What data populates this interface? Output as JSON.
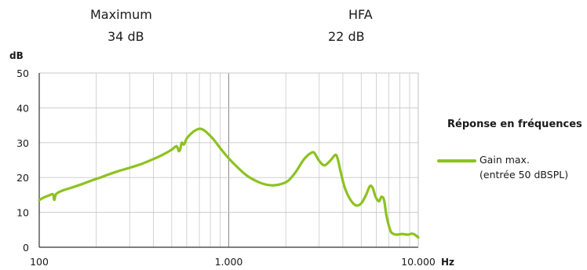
{
  "stats": [
    {
      "label": "Maximum",
      "value": "34 dB"
    },
    {
      "label": "HFA",
      "value": "22 dB"
    }
  ],
  "legend": {
    "title": "Réponse en fréquences",
    "entry_line1": "Gain max.",
    "entry_line2": "(entrée 50 dBSPL)"
  },
  "colors": {
    "series": "#8dc21f",
    "grid": "#c8c8c8",
    "axis": "#333333"
  },
  "chart_data": {
    "type": "line",
    "title": "",
    "ylabel": "dB",
    "xlabel": "Hz",
    "xscale": "log",
    "xlim": [
      100,
      10000
    ],
    "ylim": [
      0,
      50
    ],
    "yticks": [
      0,
      10,
      20,
      30,
      40,
      50
    ],
    "xticks": [
      100,
      1000,
      10000
    ],
    "xtick_labels": [
      "100",
      "1.000",
      "10.000"
    ],
    "grid": true,
    "legend_position": "right",
    "series": [
      {
        "name": "Gain max. (entrée 50 dBSPL)",
        "x": [
          100,
          105,
          112,
          118,
          120,
          122,
          125,
          135,
          150,
          170,
          190,
          210,
          230,
          260,
          300,
          350,
          400,
          450,
          500,
          530,
          545,
          555,
          565,
          580,
          600,
          630,
          660,
          700,
          740,
          780,
          830,
          900,
          1000,
          1100,
          1250,
          1450,
          1650,
          1850,
          2050,
          2250,
          2500,
          2750,
          2850,
          3000,
          3200,
          3450,
          3650,
          3750,
          3900,
          4100,
          4400,
          4700,
          5000,
          5300,
          5550,
          5750,
          5950,
          6200,
          6400,
          6600,
          6800,
          7100,
          7300,
          7700,
          8200,
          8800,
          9300,
          9700,
          10000
        ],
        "values": [
          13.5,
          14.2,
          14.8,
          15.2,
          13.6,
          15.0,
          15.6,
          16.4,
          17.2,
          18.2,
          19.2,
          20.0,
          20.8,
          21.8,
          22.8,
          24.0,
          25.3,
          26.6,
          28.0,
          29.0,
          27.6,
          28.2,
          30.0,
          29.5,
          31.2,
          32.5,
          33.4,
          34.0,
          33.6,
          32.5,
          31.0,
          28.5,
          25.5,
          23.2,
          20.5,
          18.6,
          17.8,
          18.0,
          19.0,
          21.5,
          25.3,
          27.2,
          26.8,
          24.8,
          23.5,
          25.0,
          26.5,
          25.5,
          21.5,
          17.0,
          13.5,
          12.0,
          12.6,
          15.0,
          17.5,
          17.0,
          14.5,
          13.2,
          14.5,
          13.5,
          9.0,
          5.0,
          4.0,
          3.6,
          3.8,
          3.6,
          3.9,
          3.4,
          2.8
        ]
      }
    ]
  }
}
